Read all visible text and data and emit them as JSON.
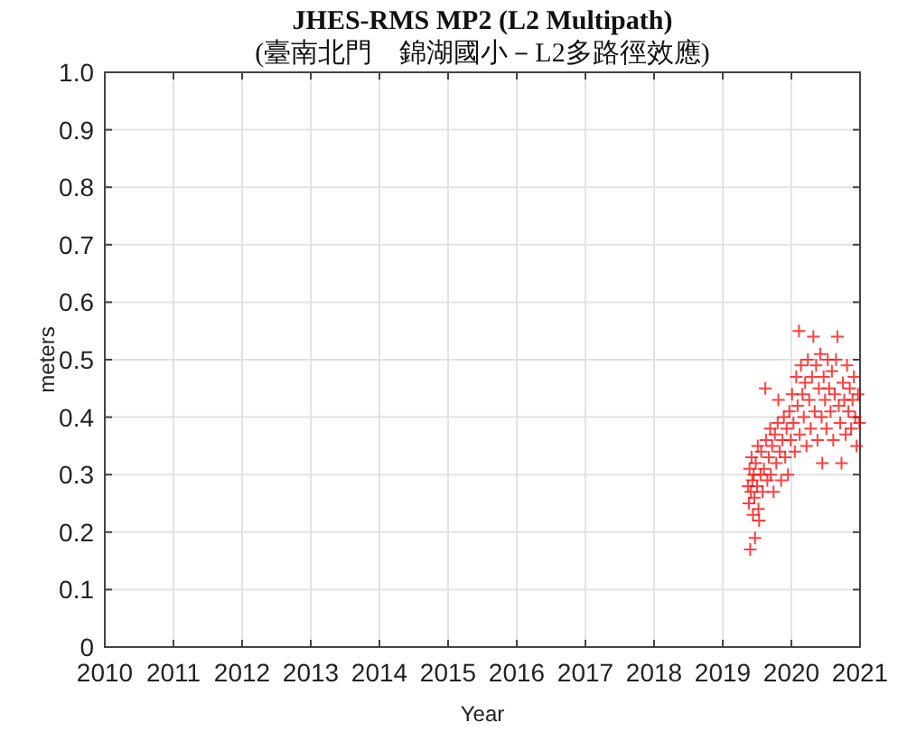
{
  "chart_data": {
    "type": "scatter",
    "title": "JHES-RMS MP2 (L2 Multipath)",
    "subtitle": "(臺南北門　錦湖國小－L2多路徑效應)",
    "xlabel": "Year",
    "ylabel": "meters",
    "xlim": [
      2010,
      2021
    ],
    "xticks": [
      2010,
      2011,
      2012,
      2013,
      2014,
      2015,
      2016,
      2017,
      2018,
      2019,
      2020,
      2021
    ],
    "ylim": [
      0,
      1
    ],
    "yticks": [
      0,
      0.1,
      0.2,
      0.3,
      0.4,
      0.5,
      0.6,
      0.7,
      0.8,
      0.9,
      {
        "value": 1,
        "label": "1.0"
      }
    ],
    "grid": true,
    "marker": "cross",
    "color": "#ff0000",
    "x": [
      2019.37,
      2019.38,
      2019.39,
      2019.4,
      2019.41,
      2019.42,
      2019.43,
      2019.44,
      2019.45,
      2019.46,
      2019.47,
      2019.48,
      2019.5,
      2019.51,
      2019.52,
      2019.53,
      2019.55,
      2019.56,
      2019.58,
      2019.6,
      2019.62,
      2019.63,
      2019.65,
      2019.67,
      2019.69,
      2019.7,
      2019.72,
      2019.74,
      2019.76,
      2019.78,
      2019.8,
      2019.81,
      2019.83,
      2019.85,
      2019.87,
      2019.89,
      2019.91,
      2019.93,
      2019.95,
      2019.97,
      2019.99,
      2020.01,
      2020.03,
      2020.05,
      2020.07,
      2020.09,
      2020.11,
      2020.12,
      2020.14,
      2020.16,
      2020.18,
      2020.2,
      2020.22,
      2020.24,
      2020.26,
      2020.28,
      2020.3,
      2020.32,
      2020.34,
      2020.36,
      2020.38,
      2020.4,
      2020.42,
      2020.44,
      2020.45,
      2020.47,
      2020.49,
      2020.51,
      2020.53,
      2020.55,
      2020.57,
      2020.59,
      2020.61,
      2020.63,
      2020.65,
      2020.67,
      2020.69,
      2020.71,
      2020.73,
      2020.75,
      2020.77,
      2020.79,
      2020.81,
      2020.83,
      2020.85,
      2020.87,
      2020.89,
      2020.91,
      2020.93,
      2020.95,
      2020.97,
      2020.99
    ],
    "values": [
      0.28,
      0.25,
      0.31,
      0.17,
      0.27,
      0.33,
      0.29,
      0.23,
      0.3,
      0.26,
      0.19,
      0.32,
      0.28,
      0.35,
      0.24,
      0.22,
      0.3,
      0.34,
      0.27,
      0.31,
      0.45,
      0.36,
      0.29,
      0.33,
      0.38,
      0.3,
      0.35,
      0.27,
      0.37,
      0.32,
      0.39,
      0.43,
      0.34,
      0.29,
      0.36,
      0.4,
      0.33,
      0.38,
      0.3,
      0.41,
      0.36,
      0.44,
      0.39,
      0.34,
      0.47,
      0.42,
      0.55,
      0.37,
      0.49,
      0.44,
      0.4,
      0.46,
      0.35,
      0.5,
      0.43,
      0.38,
      0.47,
      0.54,
      0.41,
      0.49,
      0.36,
      0.45,
      0.51,
      0.4,
      0.32,
      0.47,
      0.43,
      0.38,
      0.5,
      0.45,
      0.41,
      0.48,
      0.36,
      0.44,
      0.5,
      0.54,
      0.42,
      0.39,
      0.32,
      0.46,
      0.43,
      0.37,
      0.49,
      0.41,
      0.45,
      0.38,
      0.43,
      0.47,
      0.4,
      0.35,
      0.44,
      0.39
    ]
  }
}
